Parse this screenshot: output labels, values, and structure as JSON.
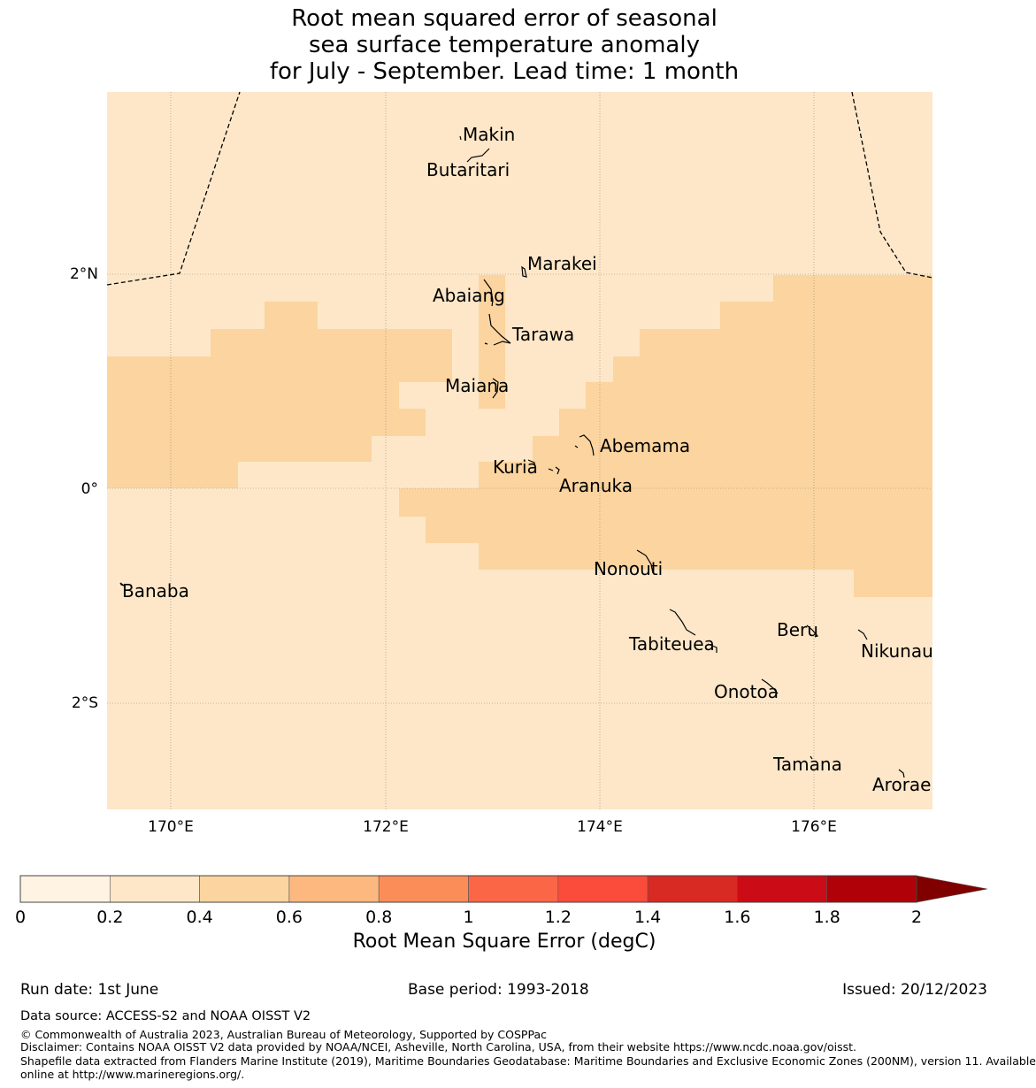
{
  "title": {
    "line1": "Root mean squared error of seasonal",
    "line2": "sea surface temperature anomaly",
    "line3": "for July - September. Lead time: 1 month"
  },
  "map": {
    "lat_ticks": [
      "2°N",
      "0°",
      "2°S"
    ],
    "lon_ticks": [
      "170°E",
      "172°E",
      "174°E",
      "176°E"
    ],
    "background_fill_color": "#fde7c8",
    "highlight_fill_color": "#fbd49f",
    "islands": [
      "Makin",
      "Butaritari",
      "Marakei",
      "Abaiang",
      "Tarawa",
      "Maiana",
      "Abemama",
      "Kuria",
      "Aranuka",
      "Nonouti",
      "Banaba",
      "Beru",
      "Tabiteuea",
      "Nikunau",
      "Onotoa",
      "Tamana",
      "Arorae"
    ]
  },
  "colorbar": {
    "ticks": [
      "0",
      "0.2",
      "0.4",
      "0.6",
      "0.8",
      "1",
      "1.2",
      "1.4",
      "1.6",
      "1.8",
      "2"
    ],
    "colors": [
      "#fff3e3",
      "#fde7c8",
      "#fbd49f",
      "#fcb87f",
      "#fb8d59",
      "#fa6646",
      "#fb4b3b",
      "#d82a22",
      "#cb0c17",
      "#b00008"
    ],
    "extend_color": "#800000",
    "label": "Root Mean Square Error (degC)"
  },
  "footer": {
    "run_date": "Run date: 1st June",
    "base_period": "Base period: 1993-2018",
    "issued": "Issued: 20/12/2023",
    "data_source": "Data source: ACCESS-S2 and NOAA OISST V2",
    "copyright": "© Commonwealth of Australia 2023, Australian Bureau of Meteorology, Supported by COSPPac",
    "disclaimer": "Disclaimer: Contains NOAA OISST V2 data provided by NOAA/NCEI, Asheville, North Carolina, USA, from their website https://www.ncdc.noaa.gov/oisst.",
    "shapefile_1": "Shapefile data extracted from Flanders Marine Institute (2019), Maritime Boundaries Geodatabase: Maritime Boundaries and Exclusive Economic Zones (200NM), version 11. Available",
    "shapefile_2": "online at http://www.marineregions.org/."
  }
}
